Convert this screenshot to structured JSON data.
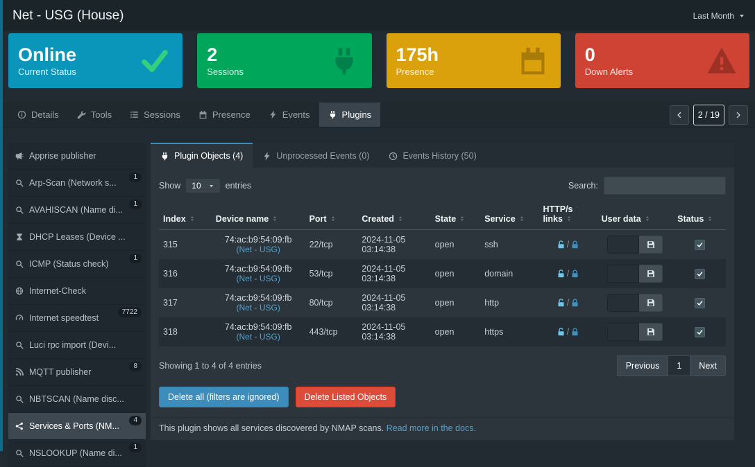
{
  "theme": {
    "accent": "#3c8dbc",
    "link": "#55a2d0",
    "danger": "#dd4b39"
  },
  "header": {
    "title": "Net - USG (House)",
    "period_selector": "Last Month"
  },
  "status_cards": [
    {
      "value": "Online",
      "label": "Current Status",
      "color": "#0996ba",
      "icon": "check-icon",
      "icon_color": "#35d07f"
    },
    {
      "value": "2",
      "label": "Sessions",
      "color": "#00a65a",
      "icon": "plug-icon",
      "icon_color": "#00804a"
    },
    {
      "value": "175h",
      "label": "Presence",
      "color": "#dba10d",
      "icon": "calendar-icon",
      "icon_color": "#a87b08"
    },
    {
      "value": "0",
      "label": "Down Alerts",
      "color": "#cf4335",
      "icon": "warning-icon",
      "icon_color": "#9e3125"
    }
  ],
  "tabs": [
    {
      "label": "Details",
      "icon": "info-icon",
      "active": false
    },
    {
      "label": "Tools",
      "icon": "tools-icon",
      "active": false
    },
    {
      "label": "Sessions",
      "icon": "list-icon",
      "active": false
    },
    {
      "label": "Presence",
      "icon": "calendar-icon",
      "active": false
    },
    {
      "label": "Events",
      "icon": "bolt-icon",
      "active": false
    },
    {
      "label": "Plugins",
      "icon": "plug-icon",
      "active": true
    }
  ],
  "pager": {
    "page_indicator": "2 / 19"
  },
  "sidebar": {
    "items": [
      {
        "label": "Apprise publisher",
        "icon": "megaphone-icon",
        "badge": "",
        "selected": false
      },
      {
        "label": "Arp-Scan (Network s...",
        "icon": "search-icon",
        "badge": "1",
        "selected": false
      },
      {
        "label": "AVAHISCAN (Name di...",
        "icon": "search-icon",
        "badge": "1",
        "selected": false
      },
      {
        "label": "DHCP Leases (Device ...",
        "icon": "hourglass-icon",
        "badge": "",
        "selected": false
      },
      {
        "label": "ICMP (Status check)",
        "icon": "search-icon",
        "badge": "1",
        "selected": false
      },
      {
        "label": "Internet-Check",
        "icon": "globe-icon",
        "badge": "",
        "selected": false
      },
      {
        "label": "Internet speedtest",
        "icon": "speed-icon",
        "badge": "7722",
        "selected": false
      },
      {
        "label": "Luci rpc import (Devi...",
        "icon": "search-icon",
        "badge": "",
        "selected": false
      },
      {
        "label": "MQTT publisher",
        "icon": "rss-icon",
        "badge": "8",
        "selected": false
      },
      {
        "label": "NBTSCAN (Name disc...",
        "icon": "search-icon",
        "badge": "",
        "selected": false
      },
      {
        "label": "Services & Ports (NM...",
        "icon": "share-nodes-icon",
        "badge": "4",
        "selected": true
      },
      {
        "label": "NSLOOKUP (Name di...",
        "icon": "search-icon",
        "badge": "1",
        "selected": false
      }
    ]
  },
  "plugin_tabs": [
    {
      "label": "Plugin Objects (4)",
      "icon": "plug-icon",
      "active": true
    },
    {
      "label": "Unprocessed Events (0)",
      "icon": "bolt-icon",
      "active": false
    },
    {
      "label": "Events History (50)",
      "icon": "clock-icon",
      "active": false
    }
  ],
  "table_controls": {
    "show_label": "Show",
    "page_size": "10",
    "entries_label": "entries",
    "search_label": "Search:"
  },
  "table": {
    "columns": [
      "Index",
      "Device name",
      "Port",
      "Created",
      "State",
      "Service",
      "HTTP/s links",
      "User data",
      "Status"
    ],
    "rows": [
      {
        "index": "315",
        "device": "74:ac:b9:54:09:fb",
        "device_link": "(Net - USG)",
        "port": "22/tcp",
        "created": "2024-11-05 03:14:38",
        "state": "open",
        "service": "ssh"
      },
      {
        "index": "316",
        "device": "74:ac:b9:54:09:fb",
        "device_link": "(Net - USG)",
        "port": "53/tcp",
        "created": "2024-11-05 03:14:38",
        "state": "open",
        "service": "domain"
      },
      {
        "index": "317",
        "device": "74:ac:b9:54:09:fb",
        "device_link": "(Net - USG)",
        "port": "80/tcp",
        "created": "2024-11-05 03:14:38",
        "state": "open",
        "service": "http"
      },
      {
        "index": "318",
        "device": "74:ac:b9:54:09:fb",
        "device_link": "(Net - USG)",
        "port": "443/tcp",
        "created": "2024-11-05 03:14:38",
        "state": "open",
        "service": "https"
      }
    ]
  },
  "table_footer": {
    "summary": "Showing 1 to 4 of 4 entries",
    "pages": [
      {
        "label": "Previous",
        "active": false
      },
      {
        "label": "1",
        "active": true
      },
      {
        "label": "Next",
        "active": false
      }
    ]
  },
  "actions": {
    "delete_all": "Delete all (filters are ignored)",
    "delete_listed": "Delete Listed Objects"
  },
  "footer_note": {
    "text": "This plugin shows all services discovered by NMAP scans.",
    "link": "Read more in the docs."
  }
}
